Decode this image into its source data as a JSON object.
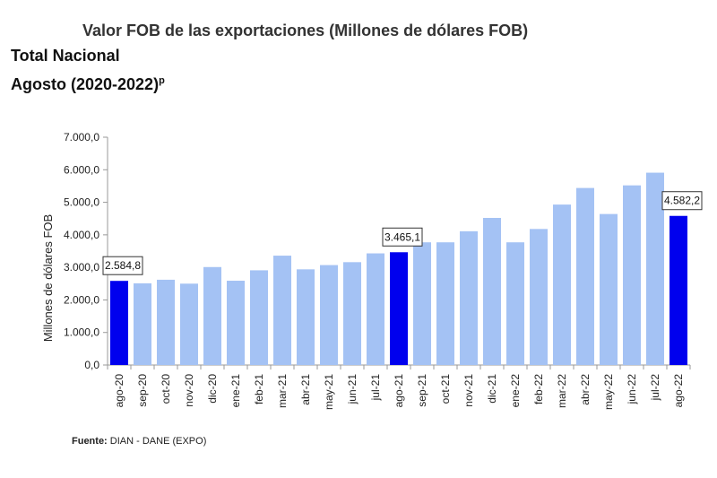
{
  "header": {
    "title": "Valor FOB de las exportaciones (Millones de dólares FOB)",
    "subtitle1": "Total Nacional",
    "subtitle2": "Agosto (2020-2022)",
    "subtitle2_sup": "p"
  },
  "footer": {
    "source_label": "Fuente:",
    "source_text": "DIAN  - DANE (EXPO)"
  },
  "colors": {
    "bar_light": "#a4c2f4",
    "bar_highlight": "#0000ee",
    "axis": "#999999",
    "text": "#222222"
  },
  "chart_data": {
    "type": "bar",
    "title": "Valor FOB de las exportaciones (Millones de dólares FOB)",
    "xlabel": "",
    "ylabel": "Millones de dólares FOB",
    "ylim": [
      0,
      7000
    ],
    "yticks": [
      0,
      1000,
      2000,
      3000,
      4000,
      5000,
      6000,
      7000
    ],
    "ytick_labels": [
      "0,0",
      "1.000,0",
      "2.000,0",
      "3.000,0",
      "4.000,0",
      "5.000,0",
      "6.000,0",
      "7.000,0"
    ],
    "grid": false,
    "legend": "none",
    "categories": [
      "ago-20",
      "sep-20",
      "oct-20",
      "nov-20",
      "dic-20",
      "ene-21",
      "feb-21",
      "mar-21",
      "abr-21",
      "may-21",
      "jun-21",
      "jul-21",
      "ago-21",
      "sep-21",
      "oct-21",
      "nov-21",
      "dic-21",
      "ene-22",
      "feb-22",
      "mar-22",
      "abr-22",
      "may-22",
      "jun-22",
      "jul-22",
      "ago-22"
    ],
    "values": [
      2584.8,
      2510,
      2620,
      2500,
      3010,
      2590,
      2910,
      3360,
      2940,
      3070,
      3160,
      3430,
      3465.1,
      3770,
      3770,
      4110,
      4520,
      3770,
      4180,
      4930,
      5440,
      4640,
      5520,
      5910,
      4582.2
    ],
    "highlighted": [
      0,
      12,
      24
    ],
    "annotations": [
      {
        "index": 0,
        "label": "2.584,8"
      },
      {
        "index": 12,
        "label": "3.465,1"
      },
      {
        "index": 24,
        "label": "4.582,2"
      }
    ]
  }
}
